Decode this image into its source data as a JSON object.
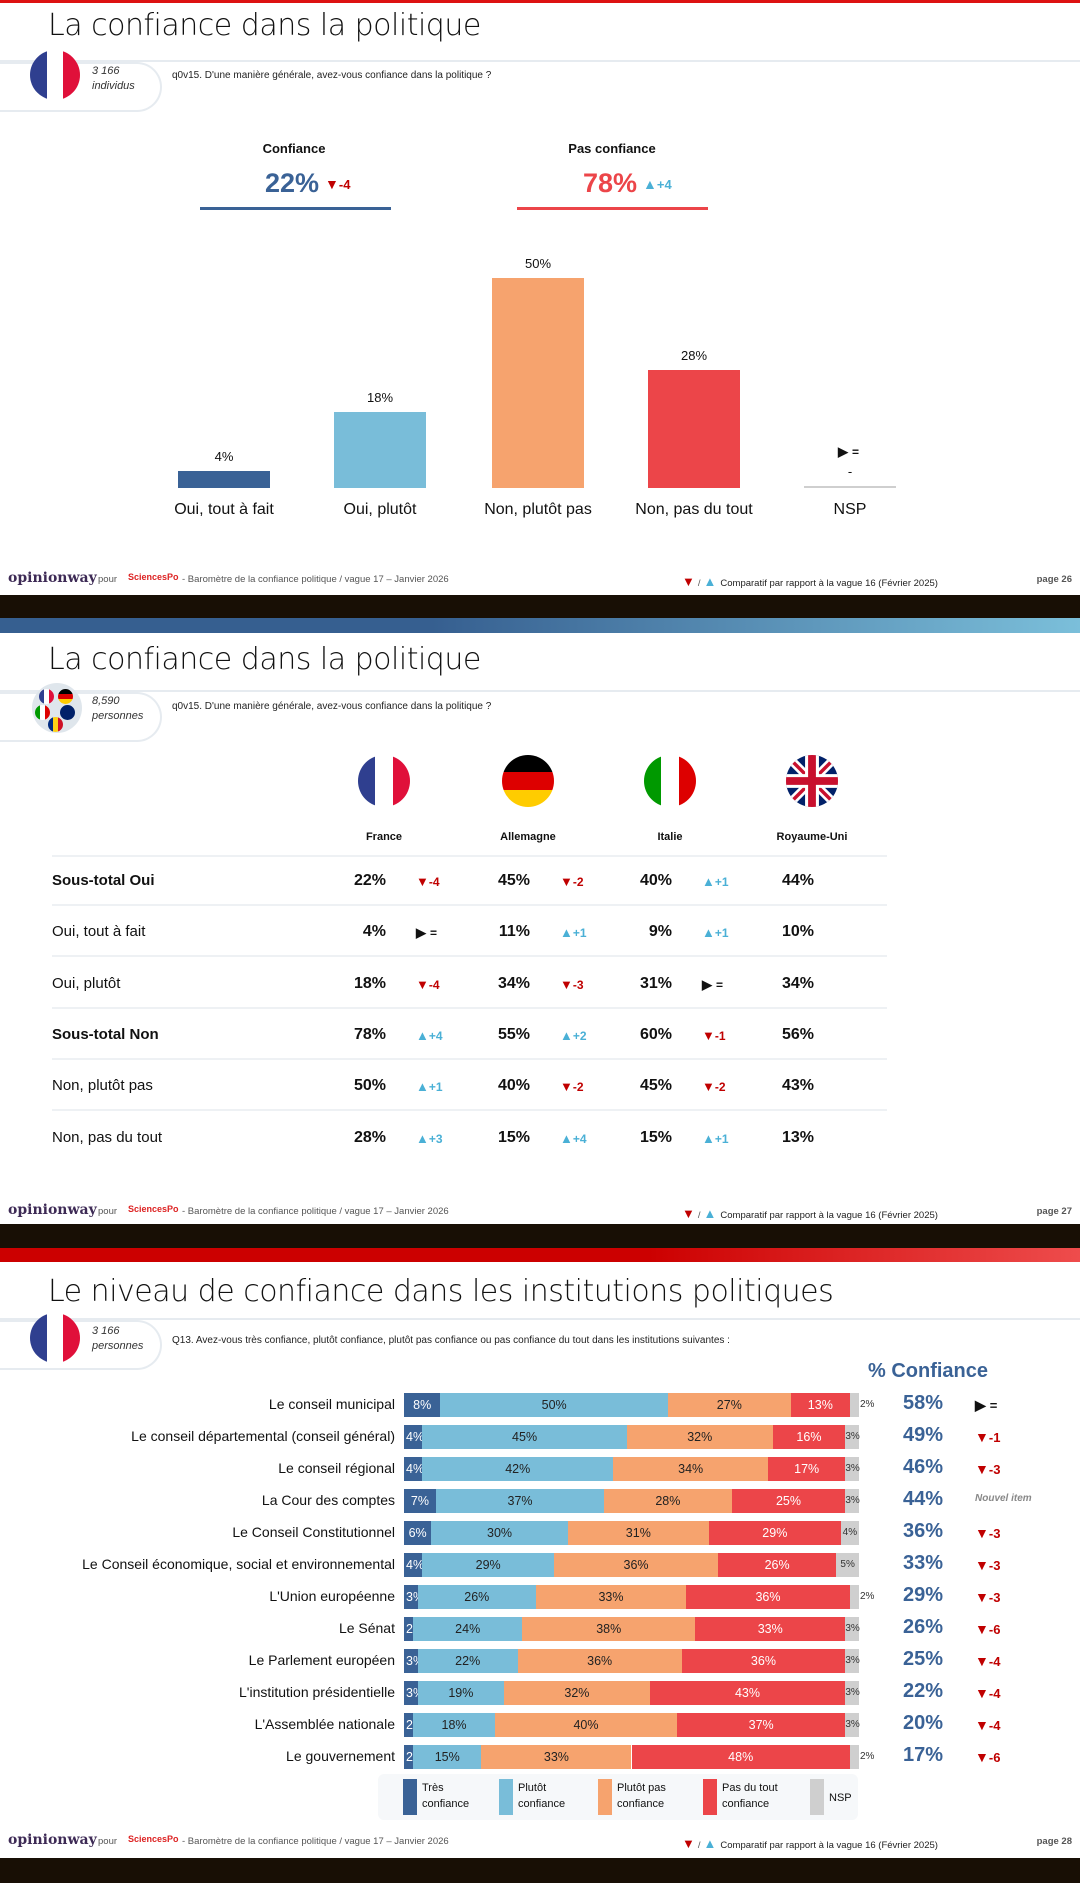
{
  "colors": {
    "tres": "#3a6296",
    "plutot": "#79bdd9",
    "plutotpas": "#f6a36e",
    "pasdutout": "#ec4549",
    "nsp": "#cfcfcf",
    "up": "#4ab0d6",
    "down": "#c00000",
    "equal": "#888888"
  },
  "footer": {
    "brand": "opinionway",
    "pour": "pour",
    "partner": "SciencesPo",
    "source": "- Baromètre de la confiance politique / vague 17 – Janvier 2026",
    "compare": "Comparatif par rapport à la vague 16 (Février 2025)",
    "compare_sep": "/"
  },
  "slide1": {
    "title": "La confiance dans la politique",
    "sample_n": "3 166",
    "sample_unit": "individus",
    "question": "q0v15. D'une manière générale, avez-vous confiance dans la politique ?",
    "summary": [
      {
        "label": "Confiance",
        "value": "22%",
        "delta": "-4",
        "trend": "down"
      },
      {
        "label": "Pas confiance",
        "value": "78%",
        "delta": "+4",
        "trend": "up"
      }
    ],
    "nsp_value": "-",
    "nsp_trend": "equal",
    "nsp_delta": "=",
    "page": "page 26"
  },
  "chart_data": [
    {
      "type": "bar",
      "categories": [
        "Oui, tout à fait",
        "Oui, plutôt",
        "Non, plutôt pas",
        "Non, pas du tout",
        "NSP"
      ],
      "values": [
        4,
        18,
        50,
        28,
        null
      ],
      "labels": [
        "4%",
        "18%",
        "50%",
        "28%",
        "-"
      ],
      "colors": [
        "#3a6296",
        "#79bdd9",
        "#f6a36e",
        "#ec4549",
        "#cfcfcf"
      ],
      "ylim": [
        0,
        50
      ]
    },
    {
      "type": "bar-stacked-horizontal",
      "title": "% Confiance",
      "series_names": [
        "Très confiance",
        "Plutôt confiance",
        "Plutôt pas confiance",
        "Pas du tout confiance",
        "NSP"
      ],
      "legend": [
        [
          "Très",
          "confiance"
        ],
        [
          "Plutôt",
          "confiance"
        ],
        [
          "Plutôt pas",
          "confiance"
        ],
        [
          "Pas du tout",
          "confiance"
        ],
        [
          "NSP"
        ]
      ],
      "rows": [
        {
          "label": "Le conseil municipal",
          "values": [
            8,
            50,
            27,
            13,
            2
          ],
          "confiance": "58%",
          "delta": "=",
          "trend": "equal"
        },
        {
          "label": "Le conseil départemental (conseil général)",
          "values": [
            4,
            45,
            32,
            16,
            3
          ],
          "confiance": "49%",
          "delta": "-1",
          "trend": "down"
        },
        {
          "label": "Le conseil régional",
          "values": [
            4,
            42,
            34,
            17,
            3
          ],
          "confiance": "46%",
          "delta": "-3",
          "trend": "down"
        },
        {
          "label": "La Cour des comptes",
          "values": [
            7,
            37,
            28,
            25,
            3
          ],
          "confiance": "44%",
          "delta": "Nouvel item",
          "trend": "new"
        },
        {
          "label": "Le Conseil Constitutionnel",
          "values": [
            6,
            30,
            31,
            29,
            4
          ],
          "confiance": "36%",
          "delta": "-3",
          "trend": "down"
        },
        {
          "label": "Le Conseil économique, social et environnemental",
          "values": [
            4,
            29,
            36,
            26,
            5
          ],
          "confiance": "33%",
          "delta": "-3",
          "trend": "down"
        },
        {
          "label": "L'Union européenne",
          "values": [
            3,
            26,
            33,
            36,
            2
          ],
          "confiance": "29%",
          "delta": "-3",
          "trend": "down"
        },
        {
          "label": "Le Sénat",
          "values": [
            2,
            24,
            38,
            33,
            3
          ],
          "confiance": "26%",
          "delta": "-6",
          "trend": "down"
        },
        {
          "label": "Le Parlement européen",
          "values": [
            3,
            22,
            36,
            36,
            3
          ],
          "confiance": "25%",
          "delta": "-4",
          "trend": "down"
        },
        {
          "label": "L'institution présidentielle",
          "values": [
            3,
            19,
            32,
            43,
            3
          ],
          "confiance": "22%",
          "delta": "-4",
          "trend": "down"
        },
        {
          "label": "L'Assemblée nationale",
          "values": [
            2,
            18,
            40,
            37,
            3
          ],
          "confiance": "20%",
          "delta": "-4",
          "trend": "down"
        },
        {
          "label": "Le gouvernement",
          "values": [
            2,
            15,
            33,
            48,
            2
          ],
          "confiance": "17%",
          "delta": "-6",
          "trend": "down"
        }
      ]
    }
  ],
  "slide2": {
    "title": "La confiance dans la politique",
    "sample_n": "8,590",
    "sample_unit": "personnes",
    "question": "q0v15. D'une manière générale, avez-vous confiance dans la politique ?",
    "countries": [
      "France",
      "Allemagne",
      "Italie",
      "Royaume-Uni"
    ],
    "rows": [
      {
        "label": "Sous-total Oui",
        "bold": true,
        "cells": [
          [
            "22%",
            "-4",
            "down"
          ],
          [
            "45%",
            "-2",
            "down"
          ],
          [
            "40%",
            "+1",
            "up"
          ],
          [
            "44%",
            "",
            ""
          ]
        ]
      },
      {
        "label": "Oui, tout à fait",
        "bold": false,
        "cells": [
          [
            "4%",
            "=",
            "equal"
          ],
          [
            "11%",
            "+1",
            "up"
          ],
          [
            "9%",
            "+1",
            "up"
          ],
          [
            "10%",
            "",
            ""
          ]
        ]
      },
      {
        "label": "Oui, plutôt",
        "bold": false,
        "cells": [
          [
            "18%",
            "-4",
            "down"
          ],
          [
            "34%",
            "-3",
            "down"
          ],
          [
            "31%",
            "=",
            "equal"
          ],
          [
            "34%",
            "",
            ""
          ]
        ]
      },
      {
        "label": "Sous-total Non",
        "bold": true,
        "cells": [
          [
            "78%",
            "+4",
            "up"
          ],
          [
            "55%",
            "+2",
            "up"
          ],
          [
            "60%",
            "-1",
            "down"
          ],
          [
            "56%",
            "",
            ""
          ]
        ]
      },
      {
        "label": "Non, plutôt pas",
        "bold": false,
        "cells": [
          [
            "50%",
            "+1",
            "up"
          ],
          [
            "40%",
            "-2",
            "down"
          ],
          [
            "45%",
            "-2",
            "down"
          ],
          [
            "43%",
            "",
            ""
          ]
        ]
      },
      {
        "label": "Non, pas du tout",
        "bold": false,
        "cells": [
          [
            "28%",
            "+3",
            "up"
          ],
          [
            "15%",
            "+4",
            "up"
          ],
          [
            "15%",
            "+1",
            "up"
          ],
          [
            "13%",
            "",
            ""
          ]
        ]
      }
    ],
    "page": "page 27"
  },
  "slide3": {
    "title": "Le niveau de confiance dans les institutions politiques",
    "sample_n": "3 166",
    "sample_unit": "personnes",
    "question": "Q13. Avez-vous très confiance, plutôt confiance, plutôt pas confiance ou pas confiance du tout dans les institutions suivantes :",
    "page": "page 28"
  }
}
